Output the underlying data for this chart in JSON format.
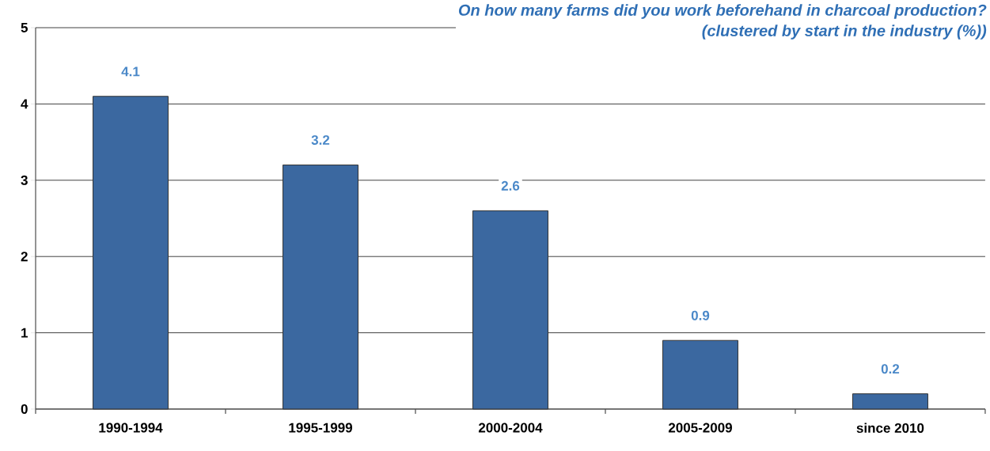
{
  "chart_data": {
    "type": "bar",
    "title": "On how many farms did you work beforehand in charcoal production?",
    "subtitle": "(clustered by start in the industry (%))",
    "categories": [
      "1990-1994",
      "1995-1999",
      "2000-2004",
      "2005-2009",
      "since 2010"
    ],
    "values": [
      4.1,
      3.2,
      2.6,
      0.9,
      0.2
    ],
    "color": "#3b68a0",
    "ylim": [
      0,
      5
    ],
    "yticks": [
      0,
      1,
      2,
      3,
      4,
      5
    ],
    "grid": "y",
    "data_labels": true
  }
}
